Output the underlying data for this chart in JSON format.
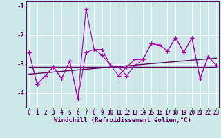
{
  "x": [
    0,
    1,
    2,
    3,
    4,
    5,
    6,
    7,
    8,
    9,
    10,
    11,
    12,
    13,
    14,
    15,
    16,
    17,
    18,
    19,
    20,
    21,
    22,
    23
  ],
  "line1": [
    -2.6,
    -3.7,
    -3.4,
    -3.1,
    -3.5,
    -2.9,
    -4.2,
    -2.6,
    -2.5,
    -2.7,
    -3.05,
    -3.4,
    -3.1,
    -2.85,
    -2.85,
    -2.3,
    -2.35,
    -2.55,
    -2.1,
    -2.6,
    -2.1,
    -3.5,
    -2.75,
    -3.05
  ],
  "line2": [
    -2.6,
    -3.7,
    -3.4,
    -3.1,
    -3.5,
    -2.9,
    -4.2,
    -1.1,
    -2.5,
    -2.5,
    -3.05,
    -3.1,
    -3.4,
    -3.05,
    -2.85,
    -2.3,
    -2.35,
    -2.55,
    -2.1,
    -2.6,
    -2.1,
    -3.5,
    -2.75,
    -3.05
  ],
  "trend1_x": [
    0,
    23
  ],
  "trend1_y": [
    -3.1,
    -3.1
  ],
  "trend2_x": [
    0,
    23
  ],
  "trend2_y": [
    -3.35,
    -2.8
  ],
  "ylim": [
    -4.5,
    -0.85
  ],
  "xlim": [
    -0.3,
    23.3
  ],
  "yticks": [
    -4,
    -3,
    -2,
    -1
  ],
  "xticks": [
    0,
    1,
    2,
    3,
    4,
    5,
    6,
    7,
    8,
    9,
    10,
    11,
    12,
    13,
    14,
    15,
    16,
    17,
    18,
    19,
    20,
    21,
    22,
    23
  ],
  "bg_color": "#cce8e8",
  "line_color": "#aa00aa",
  "trend_color": "#550055",
  "grid_color": "#ffffff",
  "xlabel": "Windchill (Refroidissement éolien,°C)",
  "xlabel_color": "#550055",
  "tick_color": "#550055",
  "axis_color": "#550055",
  "font_size": 5.5,
  "marker": "+",
  "marker_size": 4,
  "linewidth": 0.8
}
